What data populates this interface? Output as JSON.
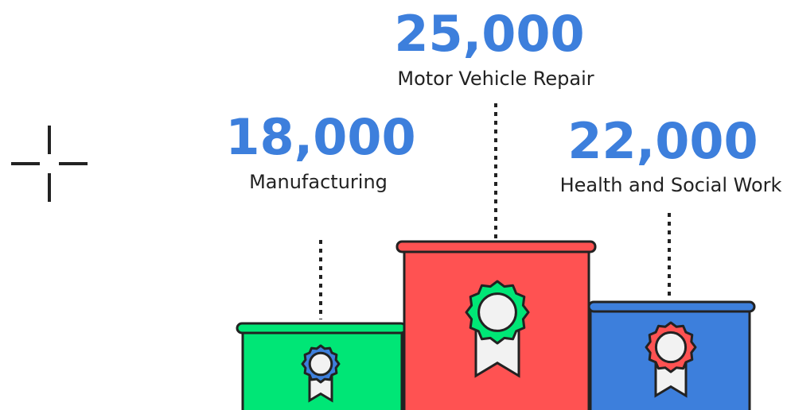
{
  "items": [
    {
      "value": "18,000",
      "label": "Manufacturing"
    },
    {
      "value": "25,000",
      "label": "Motor Vehicle Repair"
    },
    {
      "value": "22,000",
      "label": "Health and Social Work"
    }
  ]
}
